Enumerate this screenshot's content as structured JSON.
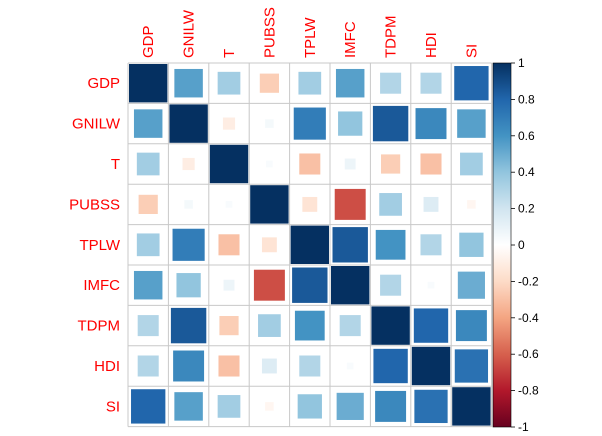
{
  "chart_data": {
    "type": "heatmap",
    "subtype": "correlation-square",
    "variables": [
      "GDP",
      "GNILW",
      "T",
      "PUBSS",
      "TPLW",
      "IMFC",
      "TDPM",
      "HDI",
      "SI"
    ],
    "matrix": [
      [
        1.0,
        0.55,
        0.35,
        -0.25,
        0.35,
        0.55,
        0.3,
        0.3,
        0.8
      ],
      [
        0.55,
        1.0,
        -0.1,
        0.05,
        0.7,
        0.4,
        0.85,
        0.65,
        0.55
      ],
      [
        0.35,
        -0.1,
        1.0,
        0.03,
        -0.3,
        0.08,
        -0.25,
        -0.3,
        0.35
      ],
      [
        -0.25,
        0.05,
        0.03,
        1.0,
        -0.15,
        -0.65,
        0.35,
        0.15,
        -0.05
      ],
      [
        0.35,
        0.7,
        -0.3,
        -0.15,
        1.0,
        0.85,
        0.6,
        0.3,
        0.4
      ],
      [
        0.55,
        0.4,
        0.08,
        -0.65,
        0.85,
        1.0,
        0.3,
        0.03,
        0.5
      ],
      [
        0.3,
        0.85,
        -0.25,
        0.35,
        0.6,
        0.3,
        1.0,
        0.8,
        0.65
      ],
      [
        0.3,
        0.65,
        -0.3,
        0.15,
        0.3,
        0.03,
        0.8,
        1.0,
        0.75
      ],
      [
        0.8,
        0.55,
        0.35,
        -0.05,
        0.4,
        0.5,
        0.65,
        0.75,
        1.0
      ]
    ],
    "colorbar": {
      "range": [
        -1,
        1
      ],
      "ticks": [
        "1",
        "0.8",
        "0.6",
        "0.4",
        "0.2",
        "0",
        "-0.2",
        "-0.4",
        "-0.6",
        "-0.8",
        "-1"
      ],
      "tick_values": [
        1,
        0.8,
        0.6,
        0.4,
        0.2,
        0,
        -0.2,
        -0.4,
        -0.6,
        -0.8,
        -1
      ]
    },
    "title": "",
    "label_color": "#ff0000",
    "colors": {
      "neg_strong": "#67001f",
      "neg_mid": "#d6604d",
      "neg_light": "#fddbc7",
      "zero": "#ffffff",
      "pos_light": "#d1e5f0",
      "pos_mid": "#4393c3",
      "pos_strong": "#053061"
    }
  }
}
